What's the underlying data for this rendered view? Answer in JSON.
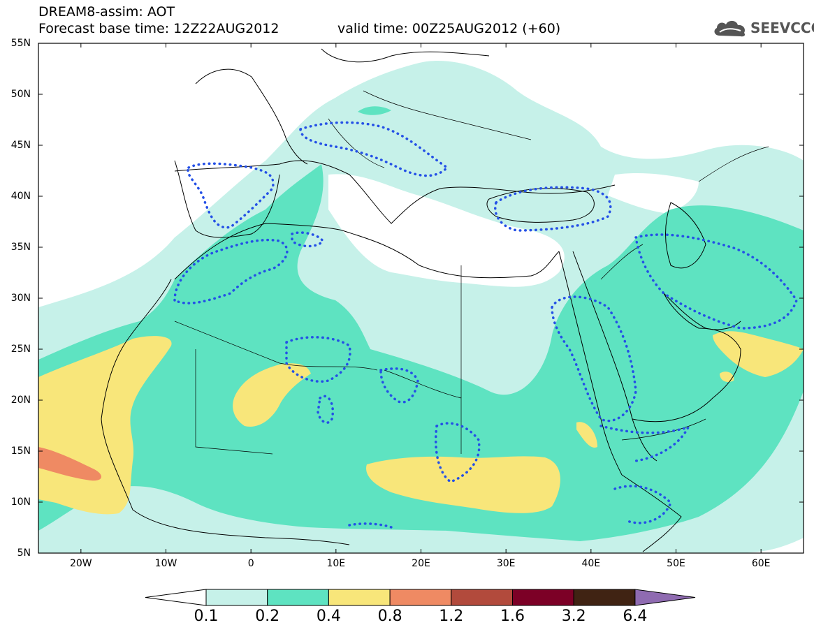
{
  "header": {
    "title": "DREAM8-assim: AOT",
    "base_time": "Forecast base time: 12Z22AUG2012",
    "valid_time": "valid time: 00Z25AUG2012 (+60)"
  },
  "logo": {
    "text": "SEEVCCC",
    "icon": "cloud-icon"
  },
  "map": {
    "lat_labels": [
      "55N",
      "50N",
      "45N",
      "40N",
      "35N",
      "30N",
      "25N",
      "20N",
      "15N",
      "10N",
      "5N"
    ],
    "lon_labels": [
      "20W",
      "10W",
      "0",
      "10E",
      "20E",
      "30E",
      "40E",
      "50E",
      "60E"
    ],
    "lat_range": [
      5,
      55
    ],
    "lon_range": [
      -25,
      65
    ]
  },
  "colorbar": {
    "labels": [
      "0.1",
      "0.2",
      "0.4",
      "0.8",
      "1.2",
      "1.6",
      "3.2",
      "6.4"
    ],
    "colors": [
      "#ffffff",
      "#c6f1e9",
      "#5ee3c1",
      "#f8e67a",
      "#ef8a63",
      "#b24a3c",
      "#7c0026",
      "#402313",
      "#8f6bb1"
    ]
  }
}
